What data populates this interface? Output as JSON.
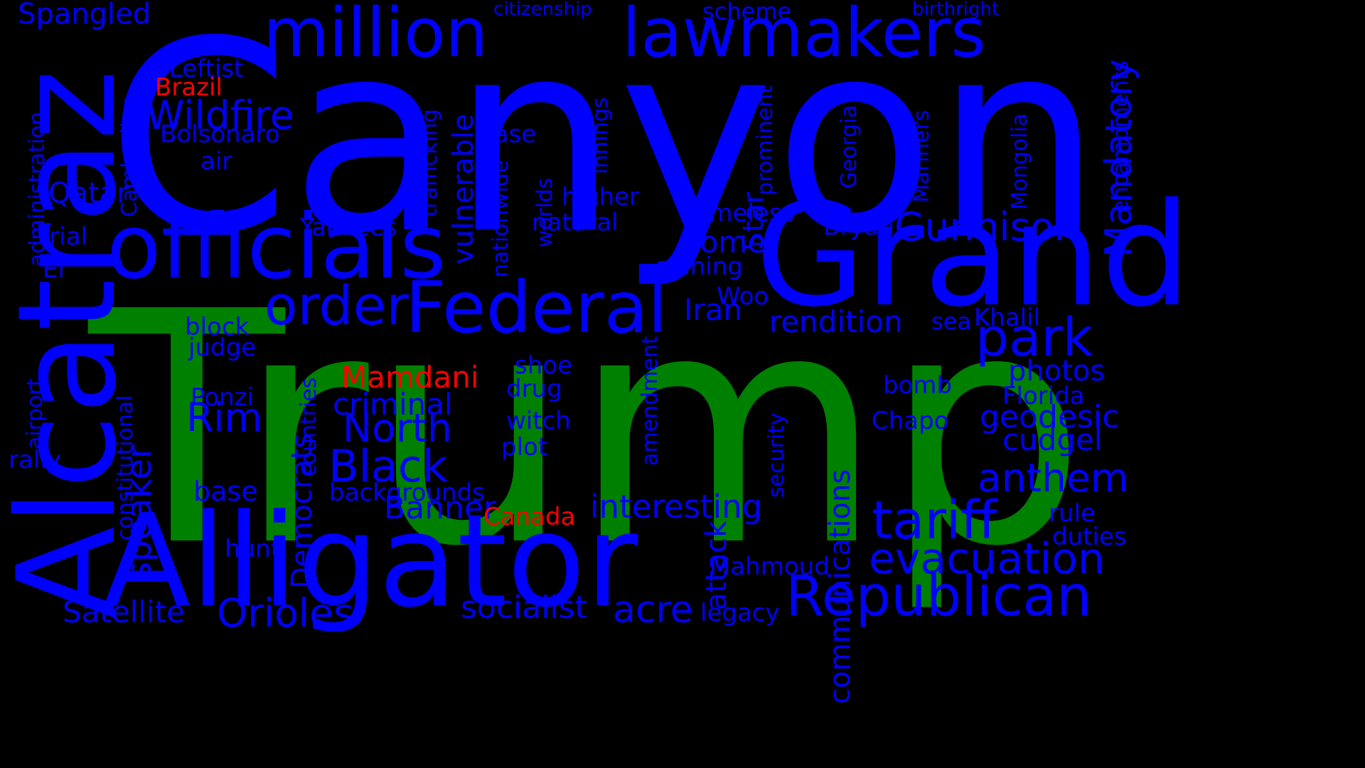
{
  "palette": {
    "background": "#000000",
    "default": "#0000ff",
    "highlight": "#008000",
    "accent": "#ff0000"
  },
  "words": [
    {
      "text": "Canyon",
      "color": "default",
      "rotation": "horizontal"
    },
    {
      "text": "Trump",
      "color": "highlight",
      "rotation": "horizontal"
    },
    {
      "text": "Alcatraz",
      "color": "default",
      "rotation": "vertical"
    },
    {
      "text": "Alligator",
      "color": "default",
      "rotation": "horizontal"
    },
    {
      "text": "officials",
      "color": "default",
      "rotation": "horizontal"
    },
    {
      "text": "Grand",
      "color": "default",
      "rotation": "horizontal"
    },
    {
      "text": "million",
      "color": "default",
      "rotation": "horizontal"
    },
    {
      "text": "lawmakers",
      "color": "default",
      "rotation": "horizontal"
    },
    {
      "text": "Federal",
      "color": "default",
      "rotation": "horizontal"
    },
    {
      "text": "Republican",
      "color": "default",
      "rotation": "horizontal"
    },
    {
      "text": "order",
      "color": "default",
      "rotation": "horizontal"
    },
    {
      "text": "tariff",
      "color": "default",
      "rotation": "horizontal"
    },
    {
      "text": "park",
      "color": "default",
      "rotation": "horizontal"
    },
    {
      "text": "evacuation",
      "color": "default",
      "rotation": "horizontal"
    },
    {
      "text": "Orioles",
      "color": "default",
      "rotation": "horizontal"
    },
    {
      "text": "Gunnison",
      "color": "default",
      "rotation": "horizontal"
    },
    {
      "text": "North",
      "color": "default",
      "rotation": "horizontal"
    },
    {
      "text": "Black",
      "color": "default",
      "rotation": "horizontal"
    },
    {
      "text": "Wildfire",
      "color": "default",
      "rotation": "horizontal"
    },
    {
      "text": "Mandatory",
      "color": "default",
      "rotation": "vertical"
    },
    {
      "text": "anthem",
      "color": "default",
      "rotation": "horizontal"
    },
    {
      "text": "acre",
      "color": "default",
      "rotation": "horizontal"
    },
    {
      "text": "Rim",
      "color": "default",
      "rotation": "horizontal"
    },
    {
      "text": "interesting",
      "color": "default",
      "rotation": "horizontal"
    },
    {
      "text": "speaker",
      "color": "default",
      "rotation": "vertical"
    },
    {
      "text": "socialist",
      "color": "default",
      "rotation": "horizontal"
    },
    {
      "text": "Satellite",
      "color": "default",
      "rotation": "horizontal"
    },
    {
      "text": "Banner",
      "color": "default",
      "rotation": "horizontal"
    },
    {
      "text": "criminal",
      "color": "default",
      "rotation": "horizontal"
    },
    {
      "text": "Mamdani",
      "color": "accent",
      "rotation": "horizontal"
    },
    {
      "text": "rendition",
      "color": "default",
      "rotation": "horizontal"
    },
    {
      "text": "Iran",
      "color": "default",
      "rotation": "horizontal"
    },
    {
      "text": "dome",
      "color": "default",
      "rotation": "horizontal"
    },
    {
      "text": "photos",
      "color": "default",
      "rotation": "horizontal"
    },
    {
      "text": "geodesic",
      "color": "default",
      "rotation": "horizontal"
    },
    {
      "text": "cudgel",
      "color": "default",
      "rotation": "horizontal"
    },
    {
      "text": "Qatar",
      "color": "default",
      "rotation": "horizontal"
    },
    {
      "text": "Spangled",
      "color": "default",
      "rotation": "horizontal"
    },
    {
      "text": "vulnerable",
      "color": "default",
      "rotation": "vertical"
    },
    {
      "text": "communications",
      "color": "default",
      "rotation": "vertical"
    },
    {
      "text": "Democrats",
      "color": "default",
      "rotation": "vertical"
    },
    {
      "text": "Star",
      "color": "default",
      "rotation": "vertical"
    },
    {
      "text": "attack",
      "color": "default",
      "rotation": "vertical"
    },
    {
      "text": "base",
      "color": "default",
      "rotation": "horizontal"
    },
    {
      "text": "Leftist",
      "color": "default",
      "rotation": "horizontal"
    },
    {
      "text": "Bolsonaro",
      "color": "default",
      "rotation": "horizontal"
    },
    {
      "text": "air",
      "color": "default",
      "rotation": "horizontal"
    },
    {
      "text": "higher",
      "color": "default",
      "rotation": "horizontal"
    },
    {
      "text": "natural",
      "color": "default",
      "rotation": "horizontal"
    },
    {
      "text": "homeless",
      "color": "default",
      "rotation": "horizontal"
    },
    {
      "text": "shining",
      "color": "default",
      "rotation": "horizontal"
    },
    {
      "text": "Bryan",
      "color": "default",
      "rotation": "horizontal"
    },
    {
      "text": "Woo",
      "color": "default",
      "rotation": "horizontal"
    },
    {
      "text": "Khalil",
      "color": "default",
      "rotation": "horizontal"
    },
    {
      "text": "sea",
      "color": "default",
      "rotation": "horizontal"
    },
    {
      "text": "Florida",
      "color": "default",
      "rotation": "horizontal"
    },
    {
      "text": "bomb",
      "color": "default",
      "rotation": "horizontal"
    },
    {
      "text": "Chapo",
      "color": "default",
      "rotation": "horizontal"
    },
    {
      "text": "rule",
      "color": "default",
      "rotation": "horizontal"
    },
    {
      "text": "duties",
      "color": "default",
      "rotation": "horizontal"
    },
    {
      "text": "Mahmoud",
      "color": "default",
      "rotation": "horizontal"
    },
    {
      "text": "legacy",
      "color": "default",
      "rotation": "horizontal"
    },
    {
      "text": "hunt",
      "color": "default",
      "rotation": "horizontal"
    },
    {
      "text": "Ponzi",
      "color": "default",
      "rotation": "horizontal"
    },
    {
      "text": "judge",
      "color": "default",
      "rotation": "horizontal"
    },
    {
      "text": "block",
      "color": "default",
      "rotation": "horizontal"
    },
    {
      "text": "shoe",
      "color": "default",
      "rotation": "horizontal"
    },
    {
      "text": "drug",
      "color": "default",
      "rotation": "horizontal"
    },
    {
      "text": "witch",
      "color": "default",
      "rotation": "horizontal"
    },
    {
      "text": "plot",
      "color": "default",
      "rotation": "horizontal"
    },
    {
      "text": "backgrounds",
      "color": "default",
      "rotation": "horizontal"
    },
    {
      "text": "Canada",
      "color": "accent",
      "rotation": "horizontal"
    },
    {
      "text": "Brazil",
      "color": "accent",
      "rotation": "horizontal"
    },
    {
      "text": "Yankees",
      "color": "default",
      "rotation": "horizontal"
    },
    {
      "text": "trial",
      "color": "default",
      "rotation": "horizontal"
    },
    {
      "text": "El",
      "color": "default",
      "rotation": "horizontal"
    },
    {
      "text": "rally",
      "color": "default",
      "rotation": "horizontal"
    },
    {
      "text": "case",
      "color": "default",
      "rotation": "horizontal"
    },
    {
      "text": "scheme",
      "color": "default",
      "rotation": "horizontal"
    },
    {
      "text": "citizenship",
      "color": "default",
      "rotation": "horizontal"
    },
    {
      "text": "birthright",
      "color": "default",
      "rotation": "horizontal"
    },
    {
      "text": "administration",
      "color": "default",
      "rotation": "vertical"
    },
    {
      "text": "Cambodian",
      "color": "default",
      "rotation": "vertical"
    },
    {
      "text": "airport",
      "color": "default",
      "rotation": "vertical"
    },
    {
      "text": "constitutional",
      "color": "default",
      "rotation": "vertical"
    },
    {
      "text": "countries",
      "color": "default",
      "rotation": "vertical"
    },
    {
      "text": "trafficking",
      "color": "default",
      "rotation": "vertical"
    },
    {
      "text": "nationwide",
      "color": "default",
      "rotation": "vertical"
    },
    {
      "text": "worlds",
      "color": "default",
      "rotation": "vertical"
    },
    {
      "text": "innings",
      "color": "default",
      "rotation": "vertical"
    },
    {
      "text": "prominent",
      "color": "default",
      "rotation": "vertical"
    },
    {
      "text": "Georgia",
      "color": "default",
      "rotation": "vertical"
    },
    {
      "text": "Mariners",
      "color": "default",
      "rotation": "vertical"
    },
    {
      "text": "Mongolia",
      "color": "default",
      "rotation": "vertical"
    },
    {
      "text": "encampments",
      "color": "default",
      "rotation": "vertical"
    },
    {
      "text": "amendment",
      "color": "default",
      "rotation": "vertical"
    },
    {
      "text": "security",
      "color": "default",
      "rotation": "vertical"
    }
  ]
}
